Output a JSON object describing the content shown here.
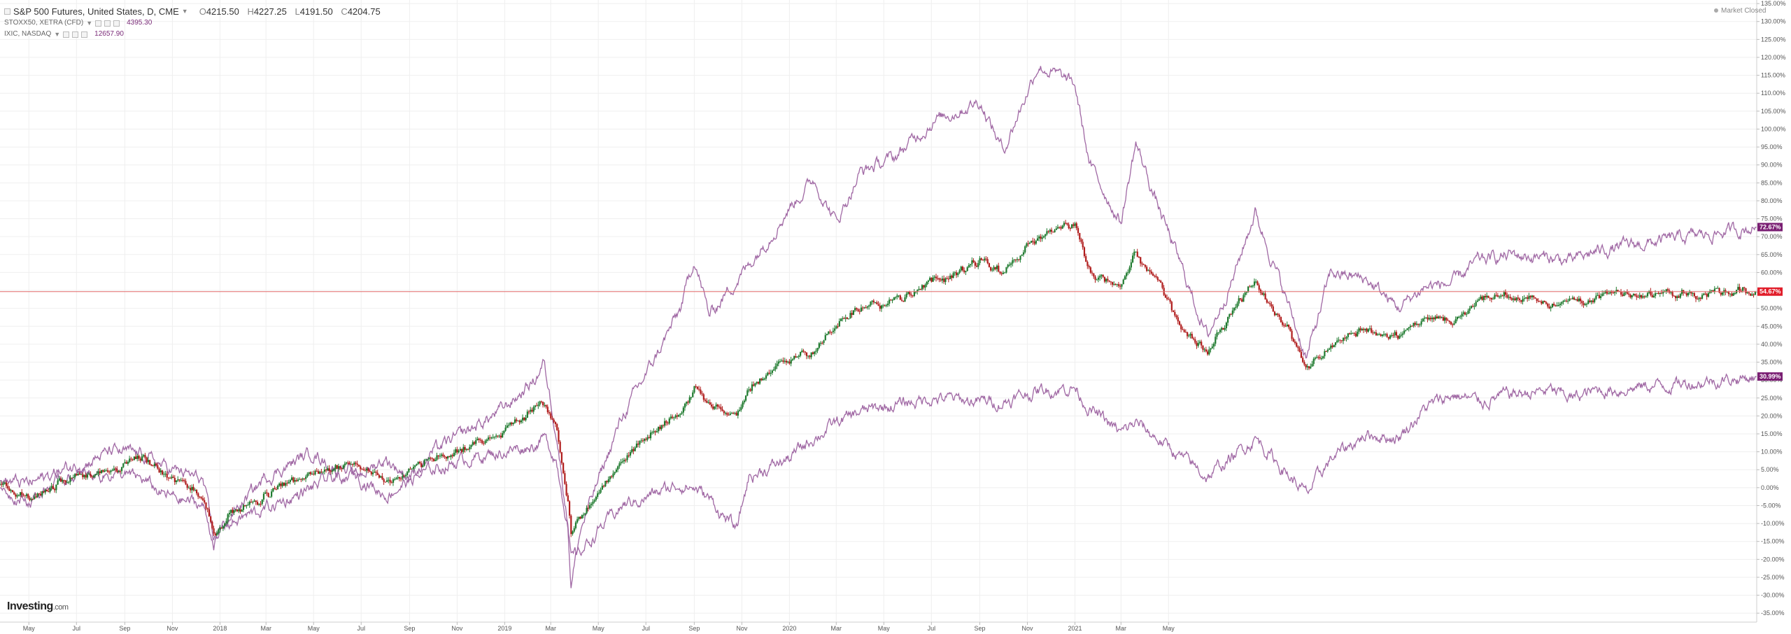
{
  "legend": {
    "main": {
      "title": "S&P 500 Futures, United States, D, CME",
      "open_label": "O",
      "open": "4215.50",
      "high_label": "H",
      "high": "4227.25",
      "low_label": "L",
      "low": "4191.50",
      "close_label": "C",
      "close": "4204.75"
    },
    "compare": [
      {
        "symbol": "STOXX50, XETRA (CFD)",
        "value": "4395.30"
      },
      {
        "symbol": "IXIC, NASDAQ",
        "value": "12657.90"
      }
    ]
  },
  "market_status": "Market Closed",
  "logo": {
    "brand": "Investing",
    "suffix": ".com"
  },
  "colors": {
    "up": "#1e7a2e",
    "down": "#b01c1c",
    "compare_line": "#a068a4",
    "last_price_line": "#e46b6b",
    "grid": "#efefef",
    "axis_text": "#555555",
    "label_primary_bg": "#e11d2a",
    "label_compare_bg": "#7a1f73"
  },
  "chart_data": {
    "type": "line",
    "x_type": "date",
    "y_unit": "%",
    "x_range": [
      "2017-03-25",
      "2023-05-25"
    ],
    "ylim": [
      -37.5,
      136
    ],
    "grid": true,
    "y_ticks": [
      "135.00%",
      "130.00%",
      "125.00%",
      "120.00%",
      "115.00%",
      "110.00%",
      "105.00%",
      "100.00%",
      "95.00%",
      "90.00%",
      "85.00%",
      "80.00%",
      "75.00%",
      "70.00%",
      "65.00%",
      "60.00%",
      "55.00%",
      "50.00%",
      "45.00%",
      "40.00%",
      "35.00%",
      "30.00%",
      "25.00%",
      "20.00%",
      "15.00%",
      "10.00%",
      "5.00%",
      "0.00%",
      "-5.00%",
      "-10.00%",
      "-15.00%",
      "-20.00%",
      "-25.00%",
      "-30.00%",
      "-35.00%"
    ],
    "x_ticks": [
      {
        "date": "2017-05-01",
        "label": "May"
      },
      {
        "date": "2017-07-01",
        "label": "Jul"
      },
      {
        "date": "2017-09-01",
        "label": "Sep"
      },
      {
        "date": "2017-11-01",
        "label": "Nov"
      },
      {
        "date": "2018-01-01",
        "label": "2018"
      },
      {
        "date": "2018-03-01",
        "label": "Mar"
      },
      {
        "date": "2018-05-01",
        "label": "May"
      },
      {
        "date": "2018-07-01",
        "label": "Jul"
      },
      {
        "date": "2018-09-01",
        "label": "Sep"
      },
      {
        "date": "2018-11-01",
        "label": "Nov"
      },
      {
        "date": "2019-01-01",
        "label": "2019"
      },
      {
        "date": "2019-03-01",
        "label": "Mar"
      },
      {
        "date": "2019-05-01",
        "label": "May"
      },
      {
        "date": "2019-07-01",
        "label": "Jul"
      },
      {
        "date": "2019-09-01",
        "label": "Sep"
      },
      {
        "date": "2019-11-01",
        "label": "Nov"
      },
      {
        "date": "2020-01-01",
        "label": "2020"
      },
      {
        "date": "2020-03-01",
        "label": "Mar"
      },
      {
        "date": "2020-05-01",
        "label": "May"
      },
      {
        "date": "2020-07-01",
        "label": "Jul"
      },
      {
        "date": "2020-09-01",
        "label": "Sep"
      },
      {
        "date": "2020-11-01",
        "label": "Nov"
      },
      {
        "date": "2021-01-01",
        "label": "2021"
      },
      {
        "date": "2021-03-01",
        "label": "Mar"
      },
      {
        "date": "2021-05-01",
        "label": "May"
      }
    ],
    "series": [
      {
        "key": "primary",
        "role": "candles",
        "points": [
          [
            "2017-03-25",
            1
          ],
          [
            "2017-05-01",
            -3
          ],
          [
            "2017-06-15",
            2
          ],
          [
            "2017-08-15",
            5
          ],
          [
            "2017-09-25",
            8
          ],
          [
            "2017-10-20",
            4
          ],
          [
            "2017-12-10",
            -2
          ],
          [
            "2017-12-24",
            -13
          ],
          [
            "2018-01-10",
            -8
          ],
          [
            "2018-03-01",
            -2
          ],
          [
            "2018-05-01",
            4
          ],
          [
            "2018-06-15",
            7
          ],
          [
            "2018-08-01",
            2
          ],
          [
            "2018-09-01",
            5
          ],
          [
            "2018-10-01",
            8
          ],
          [
            "2018-11-10",
            11
          ],
          [
            "2018-12-31",
            16
          ],
          [
            "2019-02-08",
            22
          ],
          [
            "2019-02-20",
            24
          ],
          [
            "2019-03-08",
            17
          ],
          [
            "2019-03-23",
            -3
          ],
          [
            "2019-03-27",
            -13
          ],
          [
            "2019-04-08",
            -8
          ],
          [
            "2019-05-01",
            -1
          ],
          [
            "2019-06-01",
            8
          ],
          [
            "2019-07-10",
            16
          ],
          [
            "2019-08-15",
            20
          ],
          [
            "2019-09-01",
            28
          ],
          [
            "2019-09-20",
            24
          ],
          [
            "2019-10-25",
            19
          ],
          [
            "2019-11-10",
            28
          ],
          [
            "2019-12-31",
            36
          ],
          [
            "2020-02-01",
            38
          ],
          [
            "2020-03-01",
            45
          ],
          [
            "2020-04-01",
            50
          ],
          [
            "2020-05-15",
            52
          ],
          [
            "2020-07-01",
            57
          ],
          [
            "2020-09-01",
            63
          ],
          [
            "2020-10-01",
            60
          ],
          [
            "2020-11-15",
            70
          ],
          [
            "2021-01-01",
            74
          ],
          [
            "2021-01-20",
            60
          ],
          [
            "2021-03-01",
            55
          ],
          [
            "2021-03-20",
            65
          ],
          [
            "2021-04-15",
            58
          ],
          [
            "2021-05-20",
            43
          ],
          [
            "2021-06-20",
            38
          ],
          [
            "2021-07-25",
            50
          ],
          [
            "2021-08-20",
            57
          ],
          [
            "2021-09-30",
            44
          ],
          [
            "2021-10-25",
            33
          ],
          [
            "2021-11-25",
            40
          ],
          [
            "2022-01-10",
            44
          ],
          [
            "2022-02-20",
            42
          ],
          [
            "2022-03-25",
            48
          ],
          [
            "2022-05-01",
            46
          ],
          [
            "2022-06-01",
            52
          ],
          [
            "2022-07-15",
            54
          ],
          [
            "2022-09-01",
            51
          ],
          [
            "2022-10-01",
            52
          ],
          [
            "2022-11-01",
            54
          ],
          [
            "2023-05-25",
            54.67
          ]
        ]
      },
      {
        "key": "compare_1",
        "role": "line",
        "points": [
          [
            "2017-03-25",
            2
          ],
          [
            "2017-05-01",
            1
          ],
          [
            "2017-06-15",
            5
          ],
          [
            "2017-08-15",
            10
          ],
          [
            "2017-09-25",
            9
          ],
          [
            "2017-10-20",
            6
          ],
          [
            "2017-12-10",
            2
          ],
          [
            "2017-12-24",
            -15
          ],
          [
            "2018-01-10",
            -9
          ],
          [
            "2018-03-01",
            3
          ],
          [
            "2018-05-01",
            10
          ],
          [
            "2018-06-15",
            2
          ],
          [
            "2018-08-01",
            8
          ],
          [
            "2018-09-01",
            3
          ],
          [
            "2018-10-01",
            10
          ],
          [
            "2018-11-10",
            15
          ],
          [
            "2018-12-31",
            22
          ],
          [
            "2019-02-08",
            30
          ],
          [
            "2019-02-20",
            35
          ],
          [
            "2019-03-08",
            16
          ],
          [
            "2019-03-23",
            -10
          ],
          [
            "2019-03-27",
            -27
          ],
          [
            "2019-04-08",
            -12
          ],
          [
            "2019-05-01",
            2
          ],
          [
            "2019-06-01",
            20
          ],
          [
            "2019-07-10",
            35
          ],
          [
            "2019-08-15",
            50
          ],
          [
            "2019-09-01",
            64
          ],
          [
            "2019-09-20",
            48
          ],
          [
            "2019-10-25",
            58
          ],
          [
            "2019-11-10",
            62
          ],
          [
            "2019-12-31",
            78
          ],
          [
            "2020-02-01",
            86
          ],
          [
            "2020-03-01",
            74
          ],
          [
            "2020-04-01",
            88
          ],
          [
            "2020-05-15",
            92
          ],
          [
            "2020-07-01",
            102
          ],
          [
            "2020-09-01",
            108
          ],
          [
            "2020-10-01",
            94
          ],
          [
            "2020-11-15",
            118
          ],
          [
            "2021-01-01",
            112
          ],
          [
            "2021-01-20",
            90
          ],
          [
            "2021-03-01",
            74
          ],
          [
            "2021-03-20",
            96
          ],
          [
            "2021-04-15",
            80
          ],
          [
            "2021-05-20",
            60
          ],
          [
            "2021-06-20",
            42
          ],
          [
            "2021-07-25",
            60
          ],
          [
            "2021-08-20",
            77
          ],
          [
            "2021-09-30",
            52
          ],
          [
            "2021-10-25",
            36
          ],
          [
            "2021-11-25",
            60
          ],
          [
            "2022-01-10",
            58
          ],
          [
            "2022-02-20",
            50
          ],
          [
            "2022-03-25",
            56
          ],
          [
            "2022-05-01",
            57
          ],
          [
            "2022-06-01",
            63
          ],
          [
            "2022-07-15",
            65
          ],
          [
            "2022-09-01",
            64
          ],
          [
            "2022-10-01",
            63
          ],
          [
            "2022-11-01",
            66
          ],
          [
            "2023-05-25",
            72.67
          ]
        ]
      },
      {
        "key": "compare_2",
        "role": "line",
        "points": [
          [
            "2017-03-25",
            0
          ],
          [
            "2017-05-01",
            -4
          ],
          [
            "2017-06-15",
            3
          ],
          [
            "2017-08-15",
            4
          ],
          [
            "2017-09-25",
            2
          ],
          [
            "2017-10-20",
            -2
          ],
          [
            "2017-12-10",
            -5
          ],
          [
            "2017-12-24",
            -15
          ],
          [
            "2018-01-10",
            -10
          ],
          [
            "2018-03-01",
            -6
          ],
          [
            "2018-05-01",
            0
          ],
          [
            "2018-06-15",
            5
          ],
          [
            "2018-08-01",
            -2
          ],
          [
            "2018-09-01",
            2
          ],
          [
            "2018-10-01",
            5
          ],
          [
            "2018-11-10",
            8
          ],
          [
            "2018-12-31",
            10
          ],
          [
            "2019-02-08",
            12
          ],
          [
            "2019-02-20",
            14
          ],
          [
            "2019-03-08",
            8
          ],
          [
            "2019-03-23",
            -10
          ],
          [
            "2019-03-27",
            -20
          ],
          [
            "2019-04-08",
            -18
          ],
          [
            "2019-05-01",
            -12
          ],
          [
            "2019-06-01",
            -5
          ],
          [
            "2019-07-10",
            -2
          ],
          [
            "2019-08-15",
            1
          ],
          [
            "2019-09-01",
            0
          ],
          [
            "2019-09-20",
            -3
          ],
          [
            "2019-10-25",
            -12
          ],
          [
            "2019-11-10",
            3
          ],
          [
            "2019-12-31",
            8
          ],
          [
            "2020-02-01",
            14
          ],
          [
            "2020-03-01",
            18
          ],
          [
            "2020-04-01",
            21
          ],
          [
            "2020-05-15",
            23
          ],
          [
            "2020-07-01",
            25
          ],
          [
            "2020-09-01",
            24
          ],
          [
            "2020-10-01",
            24
          ],
          [
            "2020-11-15",
            27
          ],
          [
            "2021-01-01",
            28
          ],
          [
            "2021-01-20",
            22
          ],
          [
            "2021-03-01",
            15
          ],
          [
            "2021-03-20",
            18
          ],
          [
            "2021-04-15",
            14
          ],
          [
            "2021-05-20",
            8
          ],
          [
            "2021-06-20",
            3
          ],
          [
            "2021-07-25",
            9
          ],
          [
            "2021-08-20",
            14
          ],
          [
            "2021-09-30",
            4
          ],
          [
            "2021-10-25",
            -2
          ],
          [
            "2021-11-25",
            8
          ],
          [
            "2022-01-10",
            15
          ],
          [
            "2022-02-20",
            14
          ],
          [
            "2022-03-25",
            22
          ],
          [
            "2022-05-01",
            26
          ],
          [
            "2022-06-01",
            24
          ],
          [
            "2022-07-15",
            26
          ],
          [
            "2022-09-01",
            27
          ],
          [
            "2022-10-01",
            25
          ],
          [
            "2022-11-01",
            27
          ],
          [
            "2023-05-25",
            30.99
          ]
        ]
      }
    ],
    "last_values": [
      {
        "series": "compare_1",
        "label": "72.67%",
        "value": 72.67
      },
      {
        "series": "primary",
        "label": "54.67%",
        "value": 54.67
      },
      {
        "series": "compare_2",
        "label": "30.99%",
        "value": 30.99
      }
    ]
  }
}
